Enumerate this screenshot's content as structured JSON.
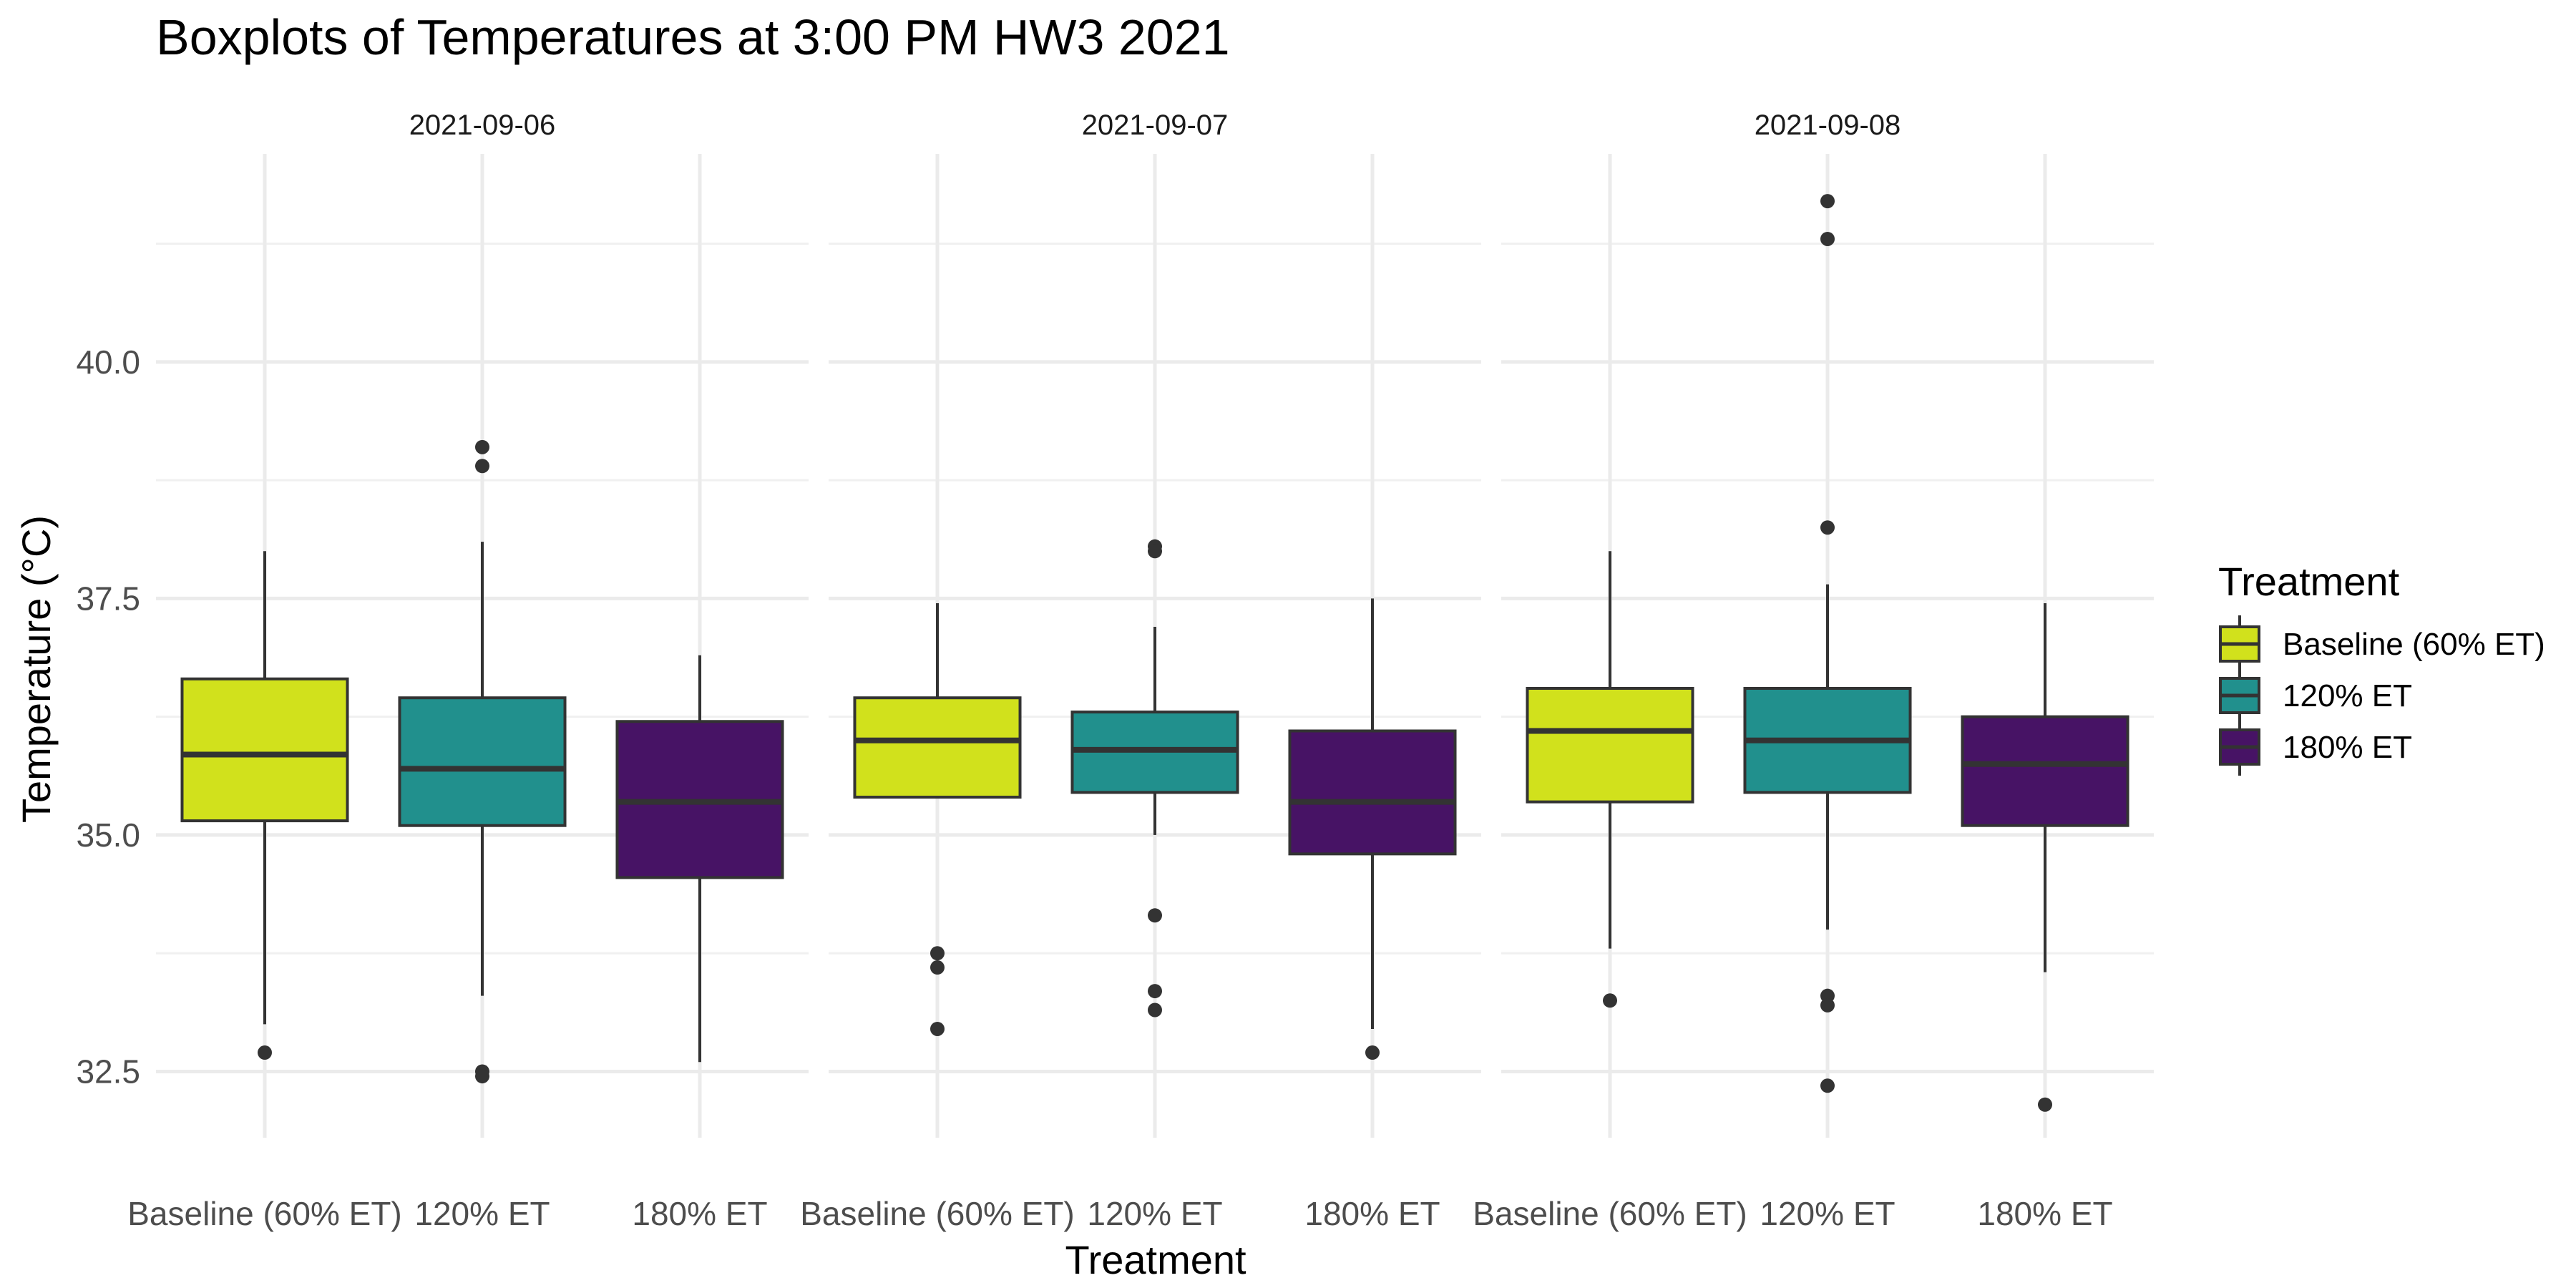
{
  "chart_data": {
    "type": "boxplot",
    "title": "Boxplots of Temperatures at 3:00 PM HW3 2021",
    "xlabel": "Treatment",
    "ylabel": "Temperature (°C)",
    "ylim": [
      31.8,
      42.2
    ],
    "yticks": [
      32.5,
      35.0,
      37.5,
      40.0
    ],
    "ytick_labels": [
      "32.5",
      "35.0",
      "37.5",
      "40.0"
    ],
    "grid": true,
    "legend": {
      "title": "Treatment",
      "position": "right",
      "entries": [
        "Baseline (60% ET)",
        "120% ET",
        "180% ET"
      ]
    },
    "categories": [
      "Baseline (60% ET)",
      "120% ET",
      "180% ET"
    ],
    "colors": [
      "#d1e11c",
      "#21908d",
      "#471365"
    ],
    "facets": [
      {
        "label": "2021-09-06",
        "boxes": [
          {
            "category": "Baseline (60% ET)",
            "whisker_low": 33.0,
            "q1": 35.15,
            "median": 35.85,
            "q3": 36.65,
            "whisker_high": 38.0,
            "outliers": [
              32.7
            ]
          },
          {
            "category": "120% ET",
            "whisker_low": 33.3,
            "q1": 35.1,
            "median": 35.7,
            "q3": 36.45,
            "whisker_high": 38.1,
            "outliers": [
              39.1,
              38.9,
              32.5,
              32.45
            ]
          },
          {
            "category": "180% ET",
            "whisker_low": 32.6,
            "q1": 34.55,
            "median": 35.35,
            "q3": 36.2,
            "whisker_high": 36.9,
            "outliers": []
          }
        ]
      },
      {
        "label": "2021-09-07",
        "boxes": [
          {
            "category": "Baseline (60% ET)",
            "whisker_low": 35.4,
            "q1": 35.4,
            "median": 36.0,
            "q3": 36.45,
            "whisker_high": 37.45,
            "outliers": [
              33.75,
              33.6,
              32.95
            ]
          },
          {
            "category": "120% ET",
            "whisker_low": 35.0,
            "q1": 35.45,
            "median": 35.9,
            "q3": 36.3,
            "whisker_high": 37.2,
            "outliers": [
              38.05,
              38.0,
              34.15,
              33.35,
              33.15
            ]
          },
          {
            "category": "180% ET",
            "whisker_low": 32.95,
            "q1": 34.8,
            "median": 35.35,
            "q3": 36.1,
            "whisker_high": 37.5,
            "outliers": [
              32.7
            ]
          }
        ]
      },
      {
        "label": "2021-09-08",
        "boxes": [
          {
            "category": "Baseline (60% ET)",
            "whisker_low": 33.8,
            "q1": 35.35,
            "median": 36.1,
            "q3": 36.55,
            "whisker_high": 38.0,
            "outliers": [
              33.25
            ]
          },
          {
            "category": "120% ET",
            "whisker_low": 34.0,
            "q1": 35.45,
            "median": 36.0,
            "q3": 36.55,
            "whisker_high": 37.65,
            "outliers": [
              41.7,
              41.3,
              38.25,
              33.3,
              33.2,
              32.35
            ]
          },
          {
            "category": "180% ET",
            "whisker_low": 33.55,
            "q1": 35.1,
            "median": 35.75,
            "q3": 36.25,
            "whisker_high": 37.45,
            "outliers": [
              32.15
            ]
          }
        ]
      }
    ]
  }
}
